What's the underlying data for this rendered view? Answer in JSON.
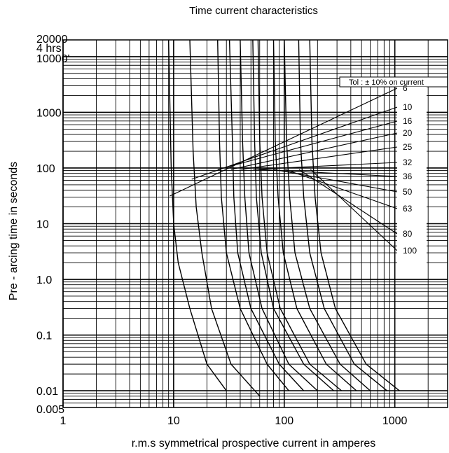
{
  "chart_data": {
    "type": "line",
    "title": "Time current characteristics",
    "xlabel": "r.m.s symmetrical prospective current in amperes",
    "ylabel": "Pre - arcing time in seconds",
    "x_scale": "log",
    "y_scale": "log",
    "xlim": [
      1,
      3000
    ],
    "ylim": [
      0.005,
      20000
    ],
    "grid": true,
    "x_ticks": [
      {
        "value": 1,
        "label": "1"
      },
      {
        "value": 10,
        "label": "10"
      },
      {
        "value": 100,
        "label": "100"
      },
      {
        "value": 1000,
        "label": "1000"
      }
    ],
    "y_ticks": [
      {
        "value": 20000,
        "label": "20000"
      },
      {
        "value": 14400,
        "label": "4 hrs"
      },
      {
        "value": 10000,
        "label": "10000'"
      },
      {
        "value": 1000,
        "label": "1000"
      },
      {
        "value": 100,
        "label": "100"
      },
      {
        "value": 10,
        "label": "10"
      },
      {
        "value": 1,
        "label": "1.0"
      },
      {
        "value": 0.1,
        "label": "0.1"
      },
      {
        "value": 0.01,
        "label": "0.01"
      },
      {
        "value": 0.005,
        "label": "0.005"
      }
    ],
    "tolerance_note": "Tol : ± 10% on current",
    "series": [
      {
        "name": "6",
        "x": [
          9,
          9.5,
          10,
          11,
          14,
          20,
          30
        ],
        "y": [
          20000,
          100,
          10,
          2,
          0.3,
          0.03,
          0.01
        ]
      },
      {
        "name": "10",
        "x": [
          14,
          15,
          16,
          18,
          22,
          33,
          60
        ],
        "y": [
          20000,
          200,
          20,
          3,
          0.3,
          0.03,
          0.008
        ]
      },
      {
        "name": "16",
        "x": [
          25,
          26,
          27,
          30,
          40,
          70,
          110
        ],
        "y": [
          20000,
          300,
          30,
          3,
          0.3,
          0.03,
          0.01
        ]
      },
      {
        "name": "20",
        "x": [
          32,
          34,
          35,
          38,
          50,
          90,
          150
        ],
        "y": [
          20000,
          300,
          30,
          3,
          0.3,
          0.03,
          0.01
        ]
      },
      {
        "name": "25",
        "x": [
          40,
          42,
          44,
          48,
          63,
          110,
          200
        ],
        "y": [
          20000,
          300,
          30,
          3,
          0.3,
          0.03,
          0.01
        ]
      },
      {
        "name": "32",
        "x": [
          52,
          54,
          56,
          62,
          80,
          150,
          280
        ],
        "y": [
          20000,
          300,
          30,
          3,
          0.3,
          0.03,
          0.01
        ]
      },
      {
        "name": "36",
        "x": [
          58,
          60,
          63,
          70,
          92,
          170,
          330
        ],
        "y": [
          20000,
          300,
          30,
          3,
          0.3,
          0.03,
          0.01
        ]
      },
      {
        "name": "50",
        "x": [
          80,
          83,
          88,
          98,
          130,
          240,
          450
        ],
        "y": [
          20000,
          300,
          30,
          3,
          0.3,
          0.03,
          0.01
        ]
      },
      {
        "name": "63",
        "x": [
          100,
          105,
          112,
          125,
          170,
          320,
          600
        ],
        "y": [
          20000,
          300,
          30,
          3,
          0.3,
          0.03,
          0.01
        ]
      },
      {
        "name": "80",
        "x": [
          135,
          140,
          150,
          170,
          230,
          430,
          850
        ],
        "y": [
          20000,
          300,
          30,
          3,
          0.3,
          0.03,
          0.01
        ]
      },
      {
        "name": "100",
        "x": [
          170,
          178,
          190,
          215,
          290,
          550,
          1100
        ],
        "y": [
          20000,
          300,
          30,
          3,
          0.3,
          0.03,
          0.01
        ]
      }
    ]
  }
}
